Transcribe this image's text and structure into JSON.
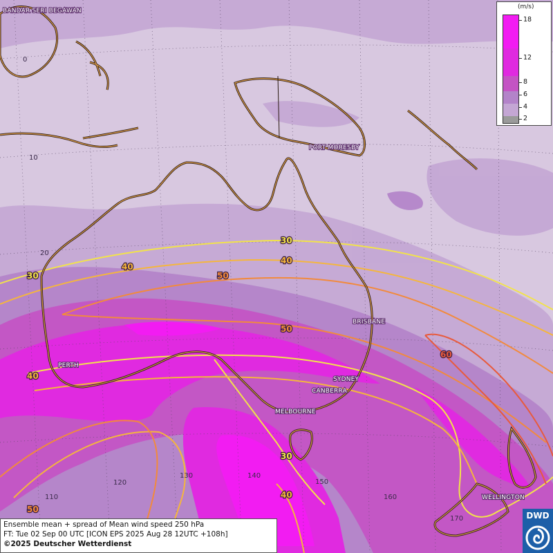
{
  "map": {
    "title": "Ensemble mean + spread of Mean wind speed 250 hPa",
    "forecast_time": "FT: Tue 02 Sep 00 UTC [ICON EPS 2025 Aug 28 12UTC +108h]",
    "copyright": "©2025 Deutscher Wetterdienst",
    "logo_text": "DWD",
    "cities": [
      "BANDAR SERI BEGAWAN",
      "PORT MORESBY",
      "BRISBANE",
      "PERTH",
      "SYDNEY",
      "CANBERRA",
      "MELBOURNE",
      "WELLINGTON"
    ],
    "latitude_labels": [
      "0",
      "10",
      "20"
    ],
    "longitude_labels": [
      "110",
      "120",
      "130",
      "140",
      "150",
      "160",
      "170"
    ],
    "isotach_labels": [
      "30",
      "40",
      "50",
      "60"
    ],
    "colors": {
      "spread_2_4": "#d8c8e0",
      "spread_4_6": "#c4a6d4",
      "spread_6_8": "#b383c9",
      "spread_8_12": "#c454c4",
      "spread_12_18": "#e02ae0",
      "spread_18plus": "#f21cf2",
      "isotach_30": "#f2e34a",
      "isotach_40": "#f5b63c",
      "isotach_50": "#f28a3c",
      "isotach_60": "#e85a3c",
      "coastline": "#7a4a1e"
    }
  },
  "legend": {
    "unit": "(m/s)",
    "ticks": [
      "18",
      "12",
      "8",
      "6",
      "4",
      "2"
    ]
  }
}
